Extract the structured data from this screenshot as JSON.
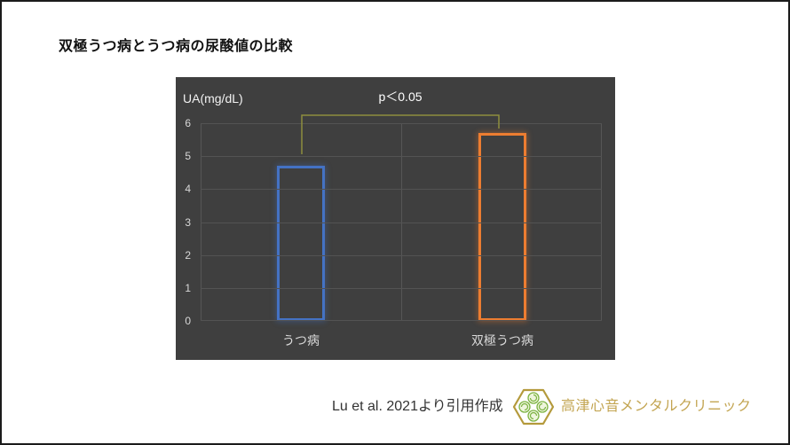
{
  "page": {
    "title": "双極うつ病とうつ病の尿酸値の比較",
    "caption": "Lu et al. 2021より引用作成",
    "clinic_name": "高津心音メンタルクリニック"
  },
  "chart_data": {
    "type": "bar",
    "title": "双極うつ病とうつ病の尿酸値の比較",
    "ylabel": "UA(mg/dL)",
    "categories": [
      "うつ病",
      "双極うつ病"
    ],
    "values": [
      4.7,
      5.7
    ],
    "yticks": [
      0,
      1,
      2,
      3,
      4,
      5,
      6
    ],
    "ylim": [
      0,
      6
    ],
    "grid": true,
    "legend": "none",
    "annotation": "p＜0.05",
    "bar_colors": [
      "#4472c4",
      "#ed7d31"
    ],
    "bar_fill": "none",
    "background": "#3f3f3f"
  },
  "colors": {
    "panel_bg": "#3f3f3f",
    "gridline": "#535353",
    "bracket": "#8e8e3e",
    "tick_text": "#d9d9d9",
    "axis_title_text": "#f2f2f2",
    "accent_blue": "#4472c4",
    "accent_orange": "#ed7d31",
    "logo_gold": "#b49a3c",
    "logo_green": "#7cb342",
    "clinic_gold": "#c3a552"
  }
}
